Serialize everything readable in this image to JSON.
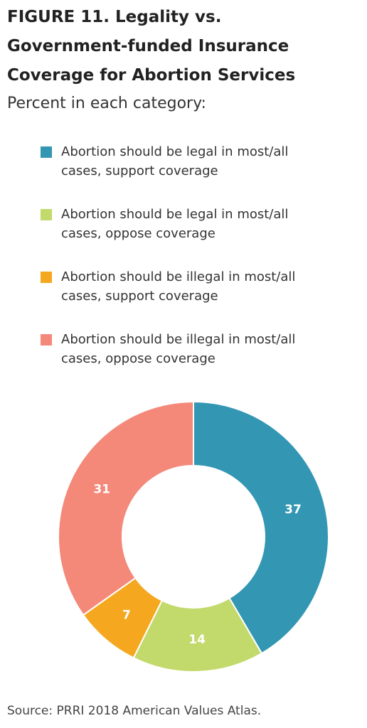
{
  "chart_data": {
    "type": "donut",
    "title": "FIGURE 11.  Legality vs. Government-funded Insurance Coverage for Abortion Services",
    "subtitle": "Percent in each category:",
    "categories": [
      "Abortion should be legal in most/all cases, support coverage",
      "Abortion should be legal in most/all cases, oppose coverage",
      "Abortion should be illegal in most/all cases, support coverage",
      "Abortion should be illegal in most/all cases, oppose coverage"
    ],
    "values": [
      37,
      14,
      7,
      31
    ],
    "colors": [
      "#3396b3",
      "#c2d96b",
      "#f5a81f",
      "#f4897a"
    ],
    "source": "Source: PRRI 2018 American Values Atlas."
  }
}
